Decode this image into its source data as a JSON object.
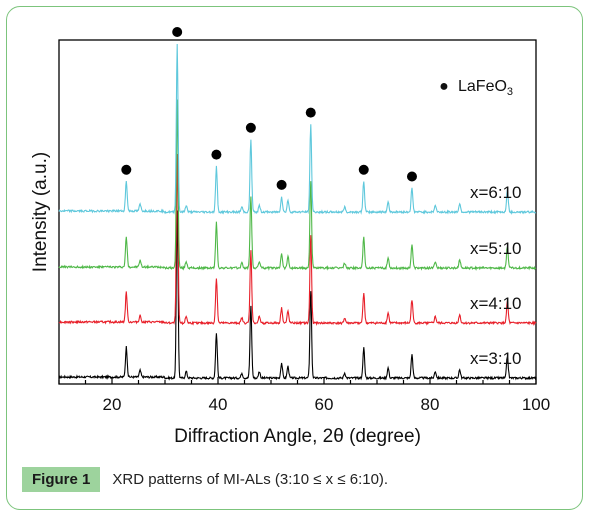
{
  "chart_data": {
    "type": "line",
    "xlabel": "Diffraction Angle, 2θ (degree)",
    "ylabel": "Intensity (a.u.)",
    "xlim": [
      10,
      100
    ],
    "xticks": [
      20,
      40,
      60,
      80,
      100
    ],
    "xtick_labels": [
      "20",
      "40",
      "60",
      "80",
      "100"
    ],
    "grid": false,
    "legend": {
      "marker": "●",
      "label_main": "LaFeO",
      "label_sub": "3",
      "placement": "top-right"
    },
    "series": [
      {
        "name": "x=3:10",
        "color": "#000000"
      },
      {
        "name": "x=4:10",
        "color": "#e8202a"
      },
      {
        "name": "x=5:10",
        "color": "#4fb848"
      },
      {
        "name": "x=6:10",
        "color": "#5fc8dc"
      }
    ],
    "peaks": [
      {
        "x": 22.7,
        "h": 0.18
      },
      {
        "x": 25.3,
        "h": 0.04
      },
      {
        "x": 32.3,
        "h": 1.0
      },
      {
        "x": 34.0,
        "h": 0.04
      },
      {
        "x": 39.7,
        "h": 0.27
      },
      {
        "x": 44.5,
        "h": 0.03
      },
      {
        "x": 46.2,
        "h": 0.43
      },
      {
        "x": 47.8,
        "h": 0.04
      },
      {
        "x": 52.0,
        "h": 0.09
      },
      {
        "x": 53.2,
        "h": 0.07
      },
      {
        "x": 57.5,
        "h": 0.52
      },
      {
        "x": 63.9,
        "h": 0.03
      },
      {
        "x": 67.5,
        "h": 0.18
      },
      {
        "x": 72.1,
        "h": 0.06
      },
      {
        "x": 76.6,
        "h": 0.14
      },
      {
        "x": 81.0,
        "h": 0.04
      },
      {
        "x": 85.6,
        "h": 0.05
      },
      {
        "x": 94.6,
        "h": 0.13
      }
    ],
    "peak_markers_x": [
      22.7,
      32.3,
      39.7,
      46.2,
      52.0,
      57.5,
      67.5,
      76.6
    ]
  },
  "caption": {
    "label": "Figure 1",
    "text": "XRD patterns of MI-ALs (3:10 ≤ x ≤ 6:10)."
  }
}
